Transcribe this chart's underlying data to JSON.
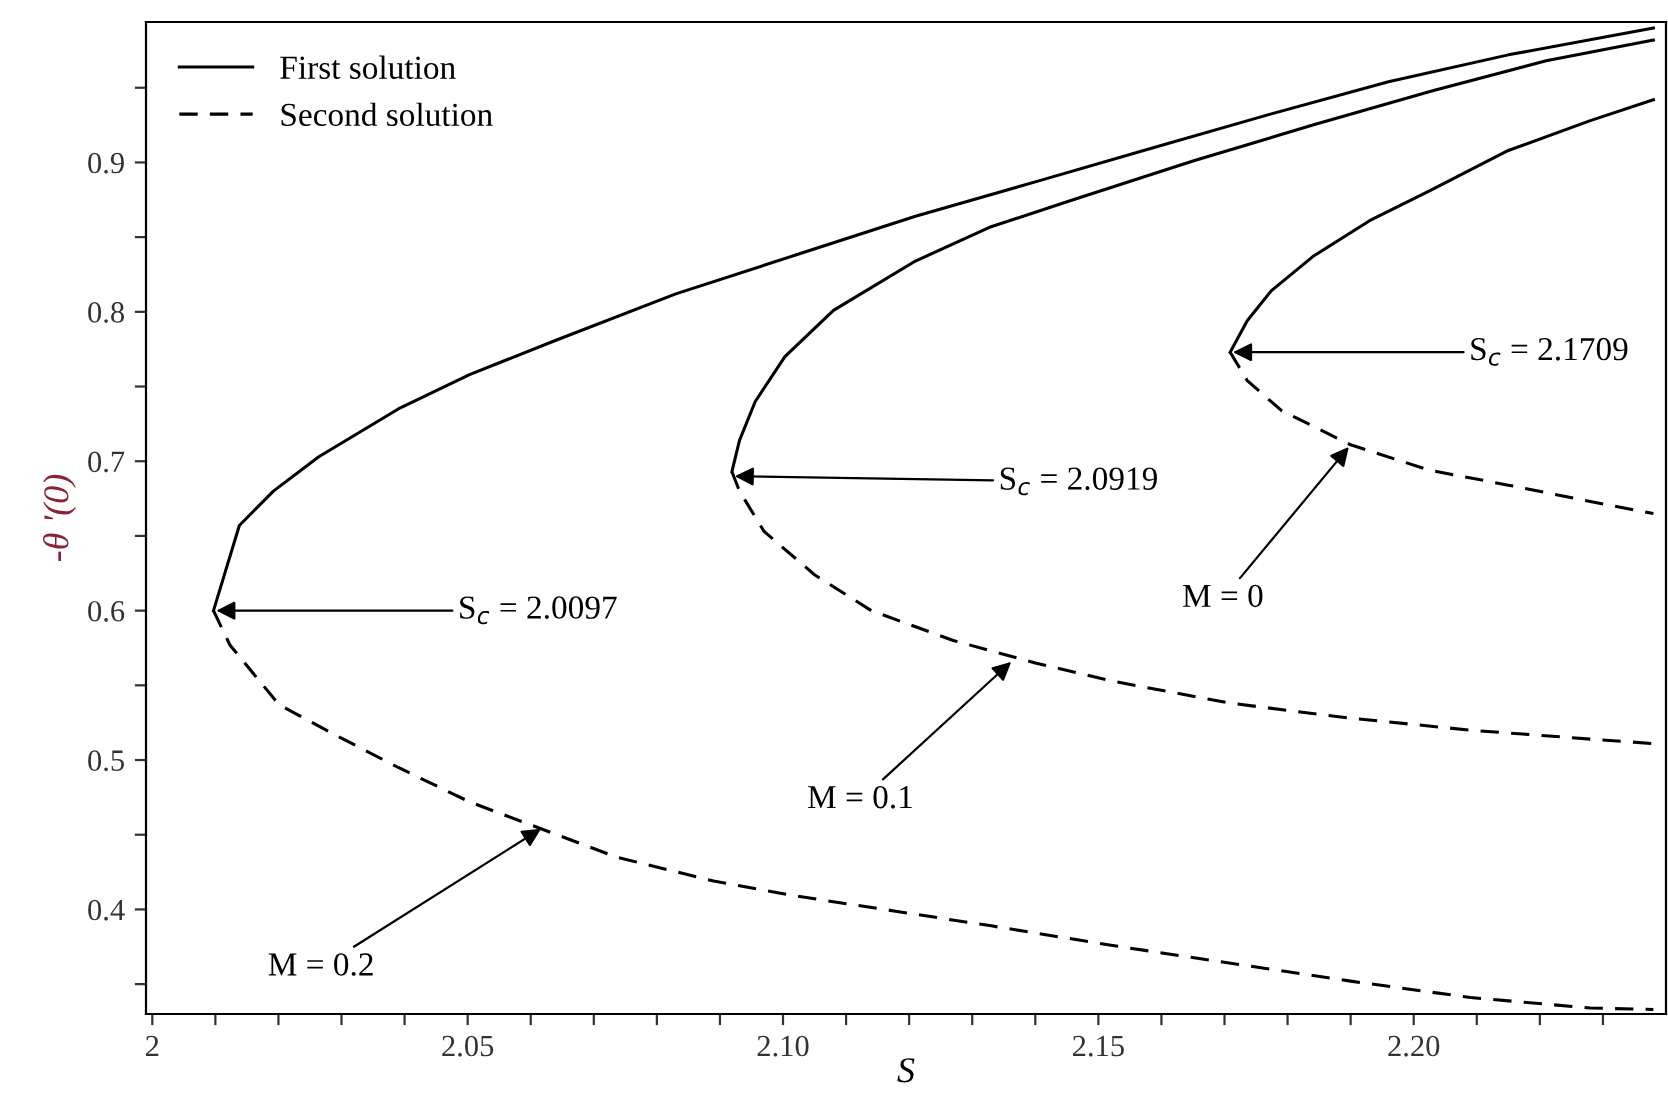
{
  "chart_data": {
    "type": "line",
    "xlabel": "S",
    "ylabel": "-θ '(0)",
    "xlim": [
      1.999,
      2.24
    ],
    "ylim": [
      0.33,
      0.994
    ],
    "xticks": [
      {
        "value": 2,
        "label": "2"
      },
      2.05,
      {
        "value": 2.1,
        "label": "2.10"
      },
      2.15,
      {
        "value": 2.2,
        "label": "2.20"
      },
      {
        "value": 2.01,
        "label": null
      },
      {
        "value": 2.02,
        "label": null
      },
      {
        "value": 2.03,
        "label": null
      },
      {
        "value": 2.04,
        "label": null
      },
      {
        "value": 2.06,
        "label": null
      },
      {
        "value": 2.07,
        "label": null
      },
      {
        "value": 2.08,
        "label": null
      },
      {
        "value": 2.09,
        "label": null
      },
      {
        "value": 2.11,
        "label": null
      },
      {
        "value": 2.12,
        "label": null
      },
      {
        "value": 2.13,
        "label": null
      },
      {
        "value": 2.14,
        "label": null
      },
      {
        "value": 2.16,
        "label": null
      },
      {
        "value": 2.17,
        "label": null
      },
      {
        "value": 2.18,
        "label": null
      },
      {
        "value": 2.19,
        "label": null
      },
      {
        "value": 2.21,
        "label": null
      },
      {
        "value": 2.22,
        "label": null
      },
      {
        "value": 2.23,
        "label": null
      }
    ],
    "yticks": [
      0.4,
      0.5,
      0.6,
      0.7,
      0.8,
      0.9,
      {
        "value": 0.35,
        "label": null
      },
      {
        "value": 0.45,
        "label": null
      },
      {
        "value": 0.55,
        "label": null
      },
      {
        "value": 0.65,
        "label": null
      },
      {
        "value": 0.75,
        "label": null
      },
      {
        "value": 0.85,
        "label": null
      },
      {
        "value": 0.95,
        "label": null
      }
    ],
    "grid": false,
    "legend": "top left",
    "marker": "none",
    "series": [
      {
        "name": "First solution",
        "color": "#000000",
        "line_style": "solid",
        "x": [
          2.0097,
          2.0138,
          2.0192,
          2.0264,
          2.039,
          2.0503,
          2.064,
          2.083,
          2.102,
          2.121,
          2.14,
          2.158,
          2.177,
          2.196,
          2.215,
          2.238
        ],
        "values": [
          0.6,
          0.657,
          0.68,
          0.703,
          0.735,
          0.758,
          0.781,
          0.812,
          0.838,
          0.864,
          0.887,
          0.909,
          0.932,
          0.954,
          0.972,
          0.99
        ]
      },
      {
        "name": "Second solution",
        "color": "#000000",
        "line_style": "dashed",
        "x": [
          2.0097,
          2.0123,
          2.0201,
          2.028,
          2.039,
          2.0503,
          2.061,
          2.0736,
          2.089,
          2.102,
          2.1176,
          2.133,
          2.152,
          2.171,
          2.19,
          2.209,
          2.228,
          2.238
        ],
        "values": [
          0.6,
          0.577,
          0.537,
          0.519,
          0.495,
          0.472,
          0.455,
          0.435,
          0.419,
          0.409,
          0.399,
          0.389,
          0.376,
          0.364,
          0.352,
          0.341,
          0.334,
          0.333
        ]
      },
      {
        "color": "#000000",
        "line_style": "solid",
        "x": [
          2.0919,
          2.0931,
          2.0956,
          2.1003,
          2.108,
          2.121,
          2.133,
          2.146,
          2.165,
          2.184,
          2.203,
          2.221,
          2.238
        ],
        "values": [
          0.693,
          0.714,
          0.74,
          0.77,
          0.801,
          0.834,
          0.857,
          0.875,
          0.901,
          0.925,
          0.948,
          0.968,
          0.982
        ]
      },
      {
        "color": "#000000",
        "line_style": "dashed",
        "x": [
          2.0919,
          2.0931,
          2.097,
          2.105,
          2.114,
          2.127,
          2.14,
          2.152,
          2.171,
          2.19,
          2.209,
          2.228,
          2.238
        ],
        "values": [
          0.693,
          0.68,
          0.653,
          0.624,
          0.6,
          0.58,
          0.565,
          0.553,
          0.538,
          0.528,
          0.52,
          0.514,
          0.511
        ]
      },
      {
        "color": "#000000",
        "line_style": "solid",
        "x": [
          2.1709,
          2.1736,
          2.1774,
          2.184,
          2.193,
          2.2025,
          2.215,
          2.228,
          2.238
        ],
        "values": [
          0.773,
          0.794,
          0.814,
          0.837,
          0.861,
          0.881,
          0.908,
          0.928,
          0.942
        ]
      },
      {
        "color": "#000000",
        "line_style": "dashed",
        "x": [
          2.1709,
          2.1736,
          2.179,
          2.19,
          2.2025,
          2.215,
          2.228,
          2.238
        ],
        "values": [
          0.773,
          0.754,
          0.734,
          0.711,
          0.694,
          0.684,
          0.673,
          0.665
        ]
      }
    ],
    "annotations": [
      {
        "text": "S$_{c}$ = 2.0097",
        "x": 2.0097,
        "y": 0.6
      },
      {
        "text": "S$_{c}$ = 2.0919",
        "x": 2.0919,
        "y": 0.69
      },
      {
        "text": "S$_{c}$ = 2.1709",
        "x": 2.1709,
        "y": 0.773
      },
      {
        "text": "M = 0.2",
        "x": 2.062,
        "y": 0.455
      },
      {
        "text": "M = 0.1",
        "x": 2.1365,
        "y": 0.567
      },
      {
        "text": "M = 0",
        "x": 2.19,
        "y": 0.711
      }
    ]
  }
}
